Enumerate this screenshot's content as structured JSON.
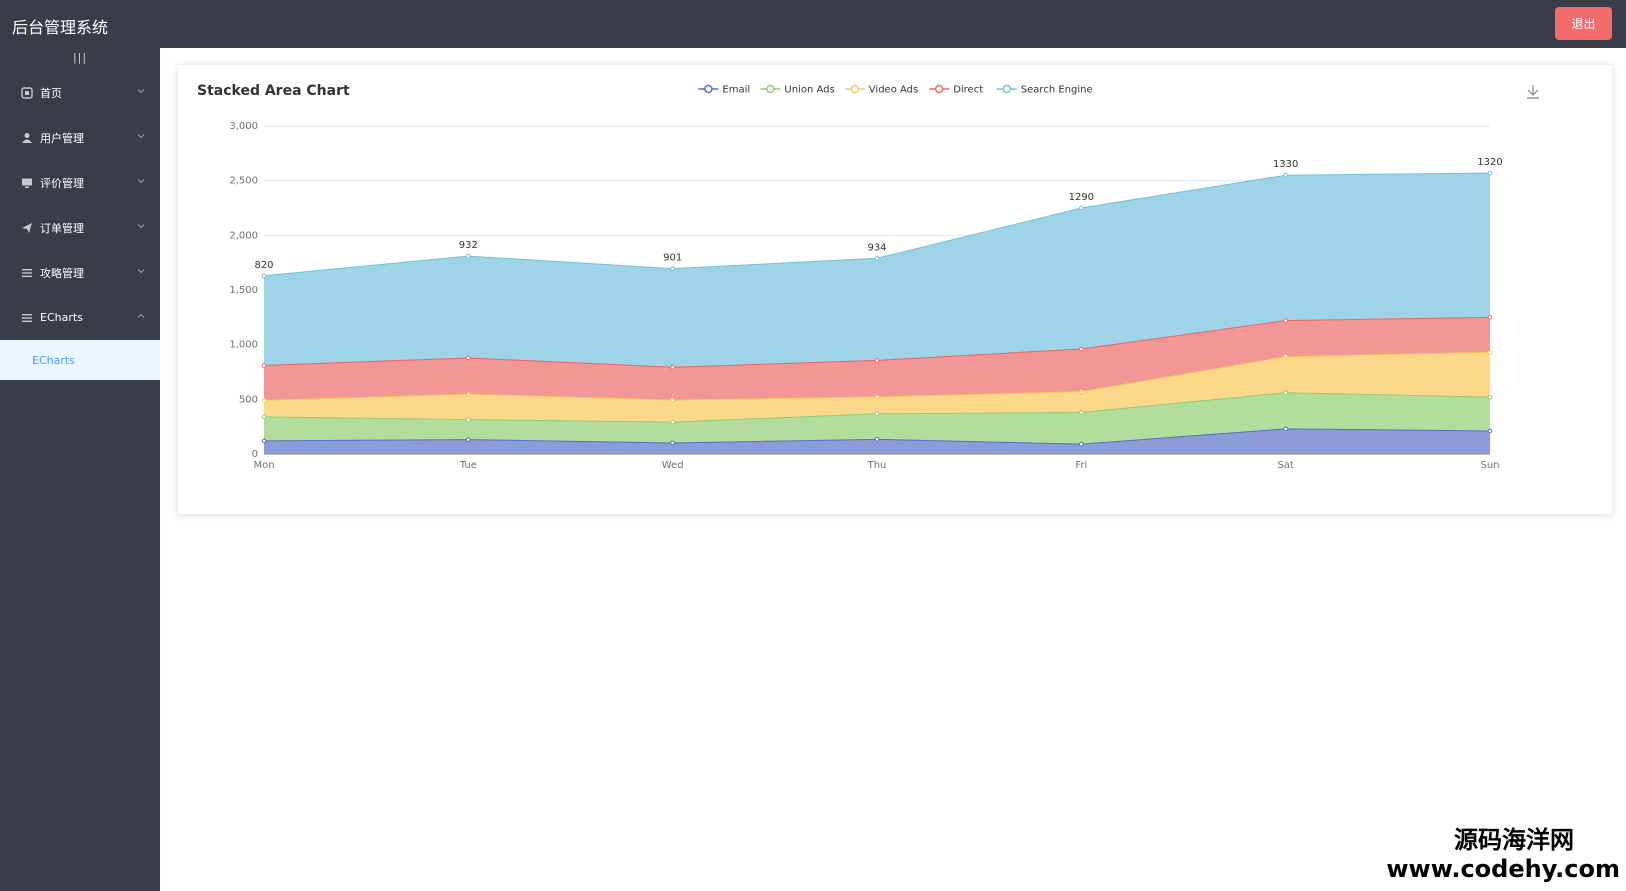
{
  "header": {
    "app_title": "后台管理系统",
    "logout_label": "退出",
    "logout_color": "#f26c6c",
    "bg_color": "#383d48"
  },
  "sidebar": {
    "collapse_icon": "menu-lines-icon",
    "items": [
      {
        "label": "首页",
        "icon": "home-icon",
        "expanded": false
      },
      {
        "label": "用户管理",
        "icon": "user-icon",
        "expanded": false
      },
      {
        "label": "评价管理",
        "icon": "monitor-icon",
        "expanded": false
      },
      {
        "label": "订单管理",
        "icon": "send-icon",
        "expanded": false
      },
      {
        "label": "攻略管理",
        "icon": "list-icon",
        "expanded": false
      },
      {
        "label": "ECharts",
        "icon": "list-icon",
        "expanded": true
      }
    ],
    "subitems": [
      {
        "label": "ECharts",
        "active": true
      }
    ]
  },
  "chart_data": {
    "type": "area",
    "stacked": true,
    "title": "Stacked Area Chart",
    "categories": [
      "Mon",
      "Tue",
      "Wed",
      "Thu",
      "Fri",
      "Sat",
      "Sun"
    ],
    "series": [
      {
        "name": "Email",
        "values": [
          120,
          132,
          101,
          134,
          90,
          230,
          210
        ],
        "color": "#5470c6",
        "fill": "#8c9cd8"
      },
      {
        "name": "Union Ads",
        "values": [
          220,
          182,
          191,
          234,
          290,
          330,
          310
        ],
        "color": "#91cc75",
        "fill": "#b2dd9c"
      },
      {
        "name": "Video Ads",
        "values": [
          150,
          232,
          201,
          154,
          190,
          330,
          410
        ],
        "color": "#fac858",
        "fill": "#fcd98a"
      },
      {
        "name": "Direct",
        "values": [
          320,
          332,
          301,
          334,
          390,
          330,
          320
        ],
        "color": "#ee6666",
        "fill": "#f29696"
      },
      {
        "name": "Search Engine",
        "values": [
          820,
          932,
          901,
          934,
          1290,
          1330,
          1320
        ],
        "color": "#73c0de",
        "fill": "#9ed3e8"
      }
    ],
    "data_labels_series": "Search Engine",
    "y_ticks": [
      "0",
      "500",
      "1,000",
      "1,500",
      "2,000",
      "2,500",
      "3,000"
    ],
    "ylim": [
      0,
      3000
    ],
    "legend_position": "top-center",
    "grid": true,
    "toolbox": "download-icon"
  },
  "watermark": {
    "line1": "源码海洋网",
    "line2": "www.codehy.com"
  }
}
